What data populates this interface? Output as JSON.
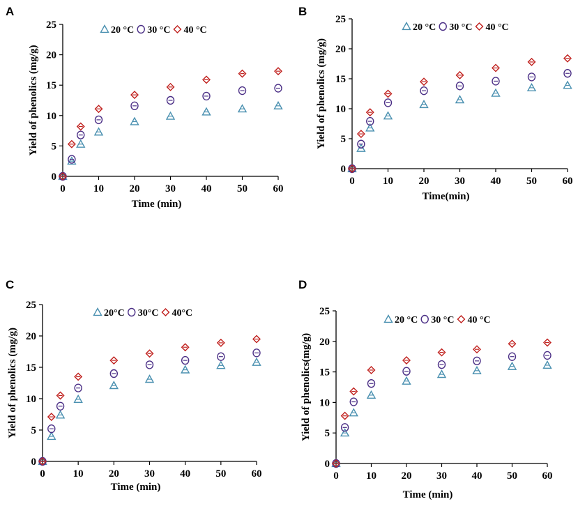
{
  "colors": {
    "s20": "#4a90b0",
    "s30": "#4b2f86",
    "s40": "#c0201d",
    "axis": "#000000"
  },
  "chart_data": [
    {
      "type": "scatter",
      "panel": "A",
      "xlabel": "Time (min)",
      "ylabel": "Yield of phenolics (mg/g)",
      "xlim": [
        0,
        60
      ],
      "ylim": [
        0,
        25
      ],
      "xticks": [
        "0",
        "10",
        "20",
        "30",
        "40",
        "50",
        "60"
      ],
      "yticks": [
        "0",
        "5",
        "10",
        "15",
        "20",
        "25"
      ],
      "x": [
        0,
        2.5,
        5,
        10,
        20,
        30,
        40,
        50,
        60
      ],
      "series": [
        {
          "name": "20 °C",
          "marker": "triangle",
          "values": [
            0,
            2.5,
            5.3,
            7.3,
            9.0,
            9.9,
            10.6,
            11.1,
            11.6
          ]
        },
        {
          "name": "30 °C",
          "marker": "circle",
          "values": [
            0,
            2.8,
            6.8,
            9.3,
            11.6,
            12.5,
            13.2,
            14.1,
            14.5
          ]
        },
        {
          "name": "40 °C",
          "marker": "diamond",
          "values": [
            0,
            5.3,
            8.2,
            11.1,
            13.4,
            14.7,
            15.9,
            16.9,
            17.3
          ]
        }
      ]
    },
    {
      "type": "scatter",
      "panel": "B",
      "xlabel": "Time(min)",
      "ylabel": "Yield of phenolics (mg/g)",
      "xlim": [
        0,
        60
      ],
      "ylim": [
        0,
        25
      ],
      "xticks": [
        "0",
        "10",
        "20",
        "30",
        "40",
        "50",
        "60"
      ],
      "yticks": [
        "0",
        "5",
        "10",
        "15",
        "20",
        "25"
      ],
      "x": [
        0,
        2.5,
        5,
        10,
        20,
        30,
        40,
        50,
        60
      ],
      "series": [
        {
          "name": "20 °C",
          "marker": "triangle",
          "values": [
            0,
            3.4,
            6.8,
            8.8,
            10.7,
            11.5,
            12.6,
            13.5,
            13.9
          ]
        },
        {
          "name": "30 °C",
          "marker": "circle",
          "values": [
            0,
            4.1,
            7.9,
            11.0,
            13.0,
            13.8,
            14.6,
            15.3,
            15.9
          ]
        },
        {
          "name": "40 °C",
          "marker": "diamond",
          "values": [
            0,
            5.8,
            9.4,
            12.5,
            14.5,
            15.6,
            16.8,
            17.8,
            18.4
          ]
        }
      ]
    },
    {
      "type": "scatter",
      "panel": "C",
      "xlabel": "Time (min)",
      "ylabel": "Yield of phenolics (mg/g)",
      "xlim": [
        0,
        60
      ],
      "ylim": [
        0,
        25
      ],
      "xticks": [
        "0",
        "10",
        "20",
        "30",
        "40",
        "50",
        "60"
      ],
      "yticks": [
        "0",
        "5",
        "10",
        "15",
        "20",
        "25"
      ],
      "x": [
        0,
        2.5,
        5,
        10,
        20,
        30,
        40,
        50,
        60
      ],
      "series": [
        {
          "name": "20°C",
          "marker": "triangle",
          "values": [
            0,
            4.0,
            7.4,
            9.9,
            12.1,
            13.1,
            14.6,
            15.3,
            15.8
          ]
        },
        {
          "name": "30°C",
          "marker": "circle",
          "values": [
            0,
            5.2,
            8.8,
            11.7,
            14.0,
            15.4,
            16.1,
            16.7,
            17.3
          ]
        },
        {
          "name": "40°C",
          "marker": "diamond",
          "values": [
            0,
            7.1,
            10.5,
            13.5,
            16.1,
            17.2,
            18.2,
            18.9,
            19.5
          ]
        }
      ]
    },
    {
      "type": "scatter",
      "panel": "D",
      "xlabel": "Time (min)",
      "ylabel": "Yield of phenolics(mg/g)",
      "xlim": [
        0,
        60
      ],
      "ylim": [
        0,
        25
      ],
      "xticks": [
        "0",
        "10",
        "20",
        "30",
        "40",
        "50",
        "60"
      ],
      "yticks": [
        "0",
        "5",
        "10",
        "15",
        "20",
        "25"
      ],
      "x": [
        0,
        2.5,
        5,
        10,
        20,
        30,
        40,
        50,
        60
      ],
      "series": [
        {
          "name": "20 °C",
          "marker": "triangle",
          "values": [
            0,
            5.0,
            8.3,
            11.2,
            13.5,
            14.6,
            15.2,
            15.9,
            16.1
          ]
        },
        {
          "name": "30 °C",
          "marker": "circle",
          "values": [
            0,
            5.9,
            10.1,
            13.1,
            15.1,
            16.2,
            16.8,
            17.5,
            17.7
          ]
        },
        {
          "name": "40 °C",
          "marker": "diamond",
          "values": [
            0,
            7.8,
            11.8,
            15.3,
            16.9,
            18.2,
            18.7,
            19.6,
            19.8
          ]
        }
      ]
    }
  ]
}
